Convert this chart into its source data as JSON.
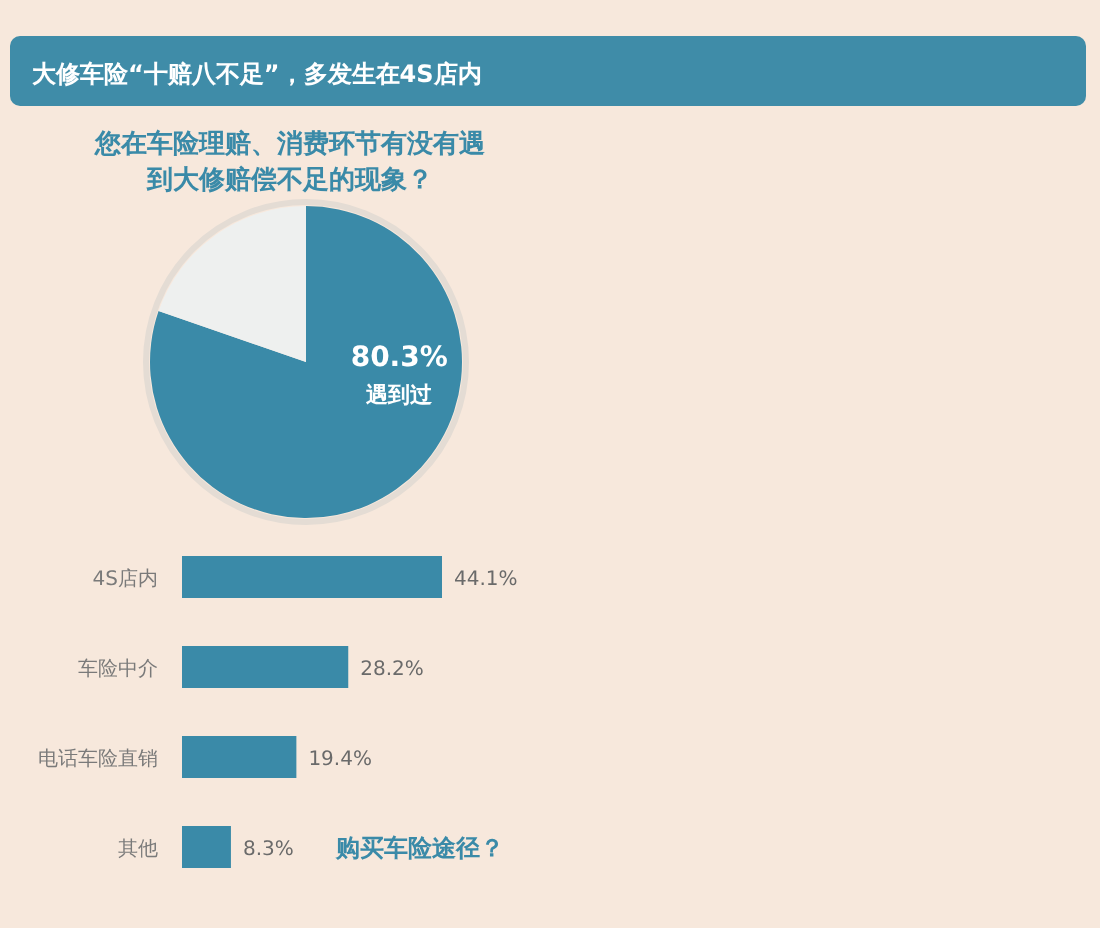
{
  "chart_data": [
    {
      "type": "pie",
      "title": "大修车险“十赔八不足”，多发生在4S店内",
      "subtitle": "您在车险理赔、消费环节有没有遇到大修赔偿不足的现象？",
      "categories": [
        "遇到过",
        null
      ],
      "values": [
        80.3,
        19.7
      ],
      "value_labels": [
        "80.3%",
        null
      ],
      "colors": [
        "#3a8aa8",
        "#eef0ef"
      ]
    },
    {
      "type": "bar",
      "orientation": "horizontal",
      "title": "购买车险途径？",
      "categories": [
        "4S店内",
        "车险中介",
        "电话车险直销",
        "其他"
      ],
      "values": [
        44.1,
        28.2,
        19.4,
        8.3
      ],
      "value_labels": [
        "44.1%",
        "28.2%",
        "19.4%",
        "8.3%"
      ],
      "color": "#3a8aa8"
    }
  ]
}
